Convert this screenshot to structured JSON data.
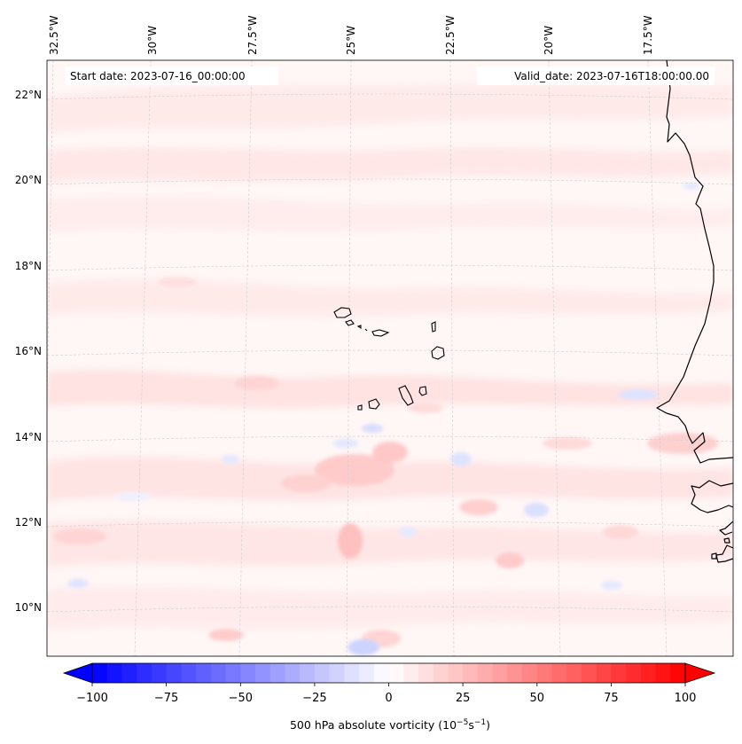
{
  "map": {
    "start_date": "Start date: 2023-07-16_00:00:00",
    "valid_date": "Valid_date: 2023-07-16T18:00:00.00",
    "lon_labels": [
      "32.5°W",
      "30°W",
      "27.5°W",
      "25°W",
      "22.5°W",
      "20°W",
      "17.5°W"
    ],
    "lat_labels": [
      "22°N",
      "20°N",
      "18°N",
      "16°N",
      "14°N",
      "12°N",
      "10°N"
    ],
    "colors": {
      "pale_red": "#ffe9e9",
      "light_red": "#ffd2d2",
      "mid_red": "#ffbcbc",
      "pale_blue": "#eef1ff",
      "light_blue": "#dde3ff",
      "background": "#fff6f6",
      "coast": "#000000",
      "grid": "#cccccc"
    }
  },
  "colorbar": {
    "ticks": [
      "−100",
      "−75",
      "−50",
      "−25",
      "0",
      "25",
      "50",
      "75",
      "100"
    ],
    "label": "500 hPa absolute vorticity (10",
    "label_exp1": "−5",
    "label_mid": "s",
    "label_exp2": "−1",
    "label_end": ")",
    "vmin": -100,
    "vmax": 100,
    "levels": 41
  }
}
